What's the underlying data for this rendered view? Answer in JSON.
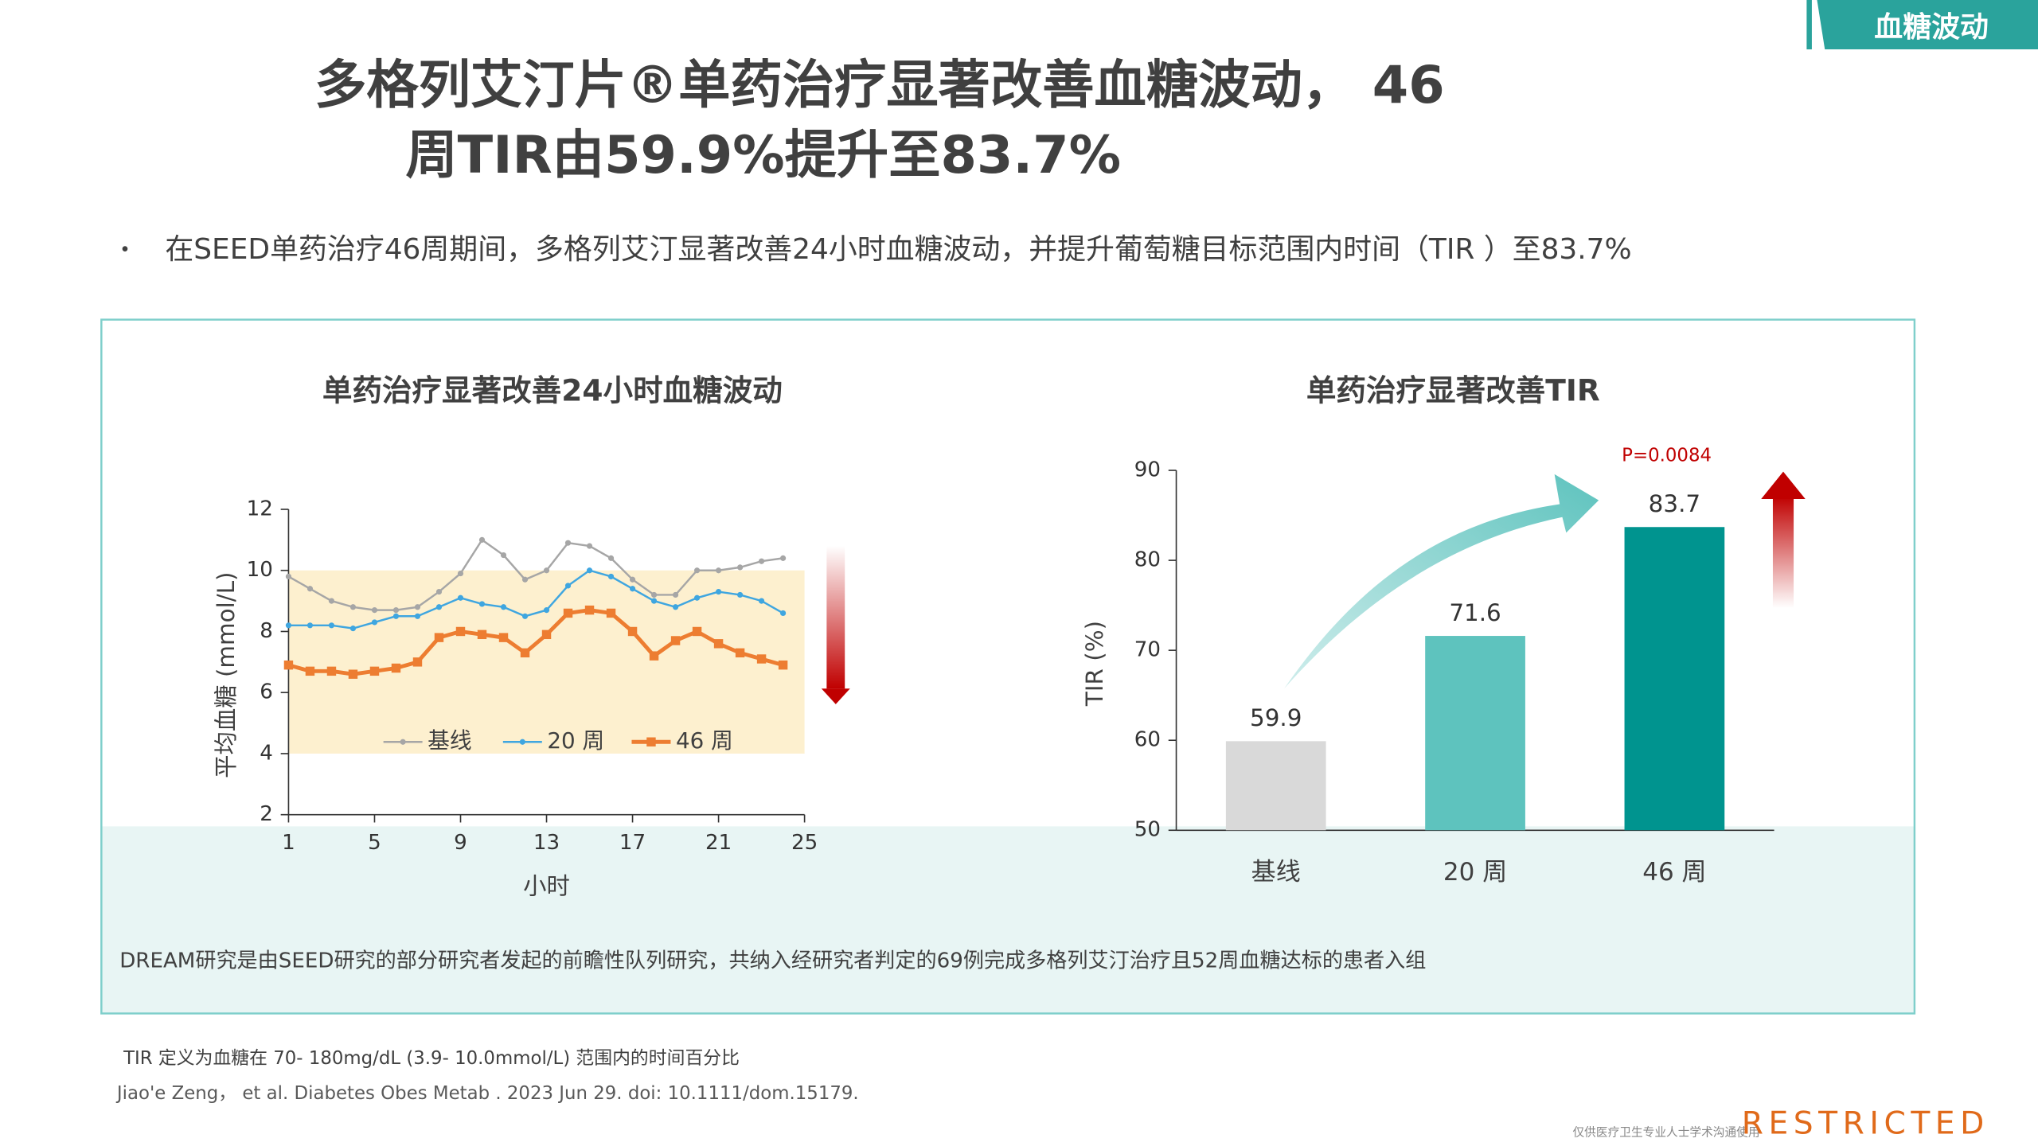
{
  "tag": "血糖波动",
  "title": [
    "多格列艾汀片®单药治疗显著改善血糖波动，  46",
    "周TIR由59.9%提升至83.7%"
  ],
  "bullet": "在SEED单药治疗46周期间，多格列艾汀显著改善24小时血糖波动，并提升葡萄糖目标范围内时间（TIR ）至83.7%",
  "note": "DREAM研究是由SEED研究的部分研究者发起的前瞻性队列研究，共纳入经研究者判定的69例完成多格列艾汀治疗且52周血糖达标的患者入组",
  "footnotes": [
    "TIR 定义为血糖在 70- 180mg/dL (3.9- 10.0mmol/L) 范围内的时间百分比",
    "Jiao'e Zeng， et al. Diabetes Obes Metab . 2023 Jun 29. doi: 10.1111/dom.15179."
  ],
  "footer": "仅供医疗卫生专业人士学术沟通使用",
  "classification": "RESTRICTED",
  "chart_data": [
    {
      "type": "line",
      "title": "单药治疗显著改善24小时血糖波动",
      "x_label": "小时",
      "y_label": "平均血糖 (mmol/L)",
      "x": [
        1,
        2,
        3,
        4,
        5,
        6,
        7,
        8,
        9,
        10,
        11,
        12,
        13,
        14,
        15,
        16,
        17,
        18,
        19,
        20,
        21,
        22,
        23,
        24
      ],
      "xlim": [
        1,
        25
      ],
      "xticks": [
        1,
        5,
        9,
        13,
        17,
        21,
        25
      ],
      "ylim": [
        2,
        12
      ],
      "yticks": [
        2,
        4,
        6,
        8,
        10,
        12
      ],
      "target_band": [
        4,
        10
      ],
      "band_color": "#fdf0cf",
      "grid": false,
      "legend": "bottom",
      "series": [
        {
          "name": "基线",
          "color": "#a6a6a6",
          "marker": "circle",
          "values": [
            9.8,
            9.4,
            9.0,
            8.8,
            8.7,
            8.7,
            8.8,
            9.3,
            9.9,
            11.0,
            10.5,
            9.7,
            10.0,
            10.9,
            10.8,
            10.4,
            9.7,
            9.2,
            9.2,
            10.0,
            10.0,
            10.1,
            10.3,
            10.4
          ]
        },
        {
          "name": "20 周",
          "color": "#3fa6e0",
          "marker": "circle",
          "values": [
            8.2,
            8.2,
            8.2,
            8.1,
            8.3,
            8.5,
            8.5,
            8.8,
            9.1,
            8.9,
            8.8,
            8.5,
            8.7,
            9.5,
            10.0,
            9.8,
            9.4,
            9.0,
            8.8,
            9.1,
            9.3,
            9.2,
            9.0,
            8.6
          ]
        },
        {
          "name": "46 周",
          "color": "#ed7d31",
          "marker": "square",
          "values": [
            6.9,
            6.7,
            6.7,
            6.6,
            6.7,
            6.8,
            7.0,
            7.8,
            8.0,
            7.9,
            7.8,
            7.3,
            7.9,
            8.6,
            8.7,
            8.6,
            8.0,
            7.2,
            7.7,
            8.0,
            7.6,
            7.3,
            7.1,
            6.9
          ]
        }
      ]
    },
    {
      "type": "bar",
      "title": "单药治疗显著改善TIR",
      "y_label": "TIR (%)",
      "categories": [
        "基线",
        "20 周",
        "46 周"
      ],
      "values": [
        59.9,
        71.6,
        83.7
      ],
      "colors": [
        "#d9d9d9",
        "#5ec3be",
        "#00948f"
      ],
      "ylim": [
        50,
        90
      ],
      "yticks": [
        50,
        60,
        70,
        80,
        90
      ],
      "grid": false,
      "annotation": "P=0.0084"
    }
  ]
}
